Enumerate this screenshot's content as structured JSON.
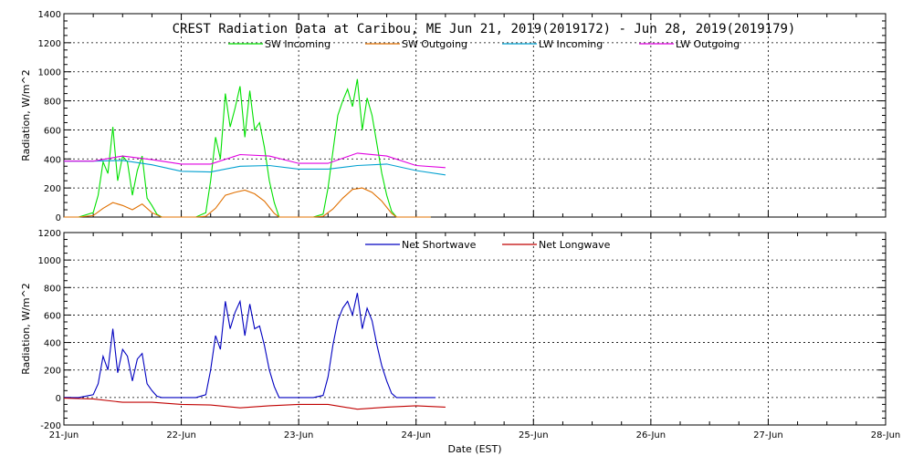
{
  "chart_data": [
    {
      "type": "line",
      "title": "CREST Radiation Data at Caribou, ME   Jun 21, 2019(2019172) - Jun 28, 2019(2019179)",
      "ylabel": "Radiation, W/m^2",
      "xlabel": "",
      "ylim": [
        0,
        1400
      ],
      "yticks": [
        0,
        200,
        400,
        600,
        800,
        1000,
        1200,
        1400
      ],
      "xlim": [
        "21-Jun",
        "28-Jun"
      ],
      "xticks": [
        "21-Jun",
        "22-Jun",
        "23-Jun",
        "24-Jun",
        "25-Jun",
        "26-Jun",
        "27-Jun",
        "28-Jun"
      ],
      "grid": true,
      "legend": "top",
      "series": [
        {
          "name": "SW Incoming",
          "color": "#00e000",
          "x": [
            "21-Jun 00:00",
            "21-Jun 03:00",
            "21-Jun 06:00",
            "21-Jun 07:00",
            "21-Jun 08:00",
            "21-Jun 09:00",
            "21-Jun 10:00",
            "21-Jun 11:00",
            "21-Jun 12:00",
            "21-Jun 13:00",
            "21-Jun 14:00",
            "21-Jun 15:00",
            "21-Jun 16:00",
            "21-Jun 17:00",
            "21-Jun 18:00",
            "21-Jun 19:00",
            "21-Jun 20:00",
            "21-Jun 22:00",
            "22-Jun 03:00",
            "22-Jun 05:00",
            "22-Jun 06:00",
            "22-Jun 07:00",
            "22-Jun 08:00",
            "22-Jun 09:00",
            "22-Jun 10:00",
            "22-Jun 11:00",
            "22-Jun 12:00",
            "22-Jun 13:00",
            "22-Jun 14:00",
            "22-Jun 15:00",
            "22-Jun 16:00",
            "22-Jun 17:00",
            "22-Jun 18:00",
            "22-Jun 19:00",
            "22-Jun 20:00",
            "22-Jun 22:00",
            "23-Jun 03:00",
            "23-Jun 05:00",
            "23-Jun 06:00",
            "23-Jun 07:00",
            "23-Jun 08:00",
            "23-Jun 09:00",
            "23-Jun 10:00",
            "23-Jun 11:00",
            "23-Jun 12:00",
            "23-Jun 13:00",
            "23-Jun 14:00",
            "23-Jun 15:00",
            "23-Jun 16:00",
            "23-Jun 17:00",
            "23-Jun 18:00",
            "23-Jun 19:00",
            "23-Jun 20:00",
            "23-Jun 22:00",
            "24-Jun 03:00"
          ],
          "values": [
            0,
            0,
            30,
            150,
            380,
            300,
            620,
            250,
            420,
            380,
            150,
            320,
            420,
            130,
            80,
            20,
            0,
            0,
            0,
            30,
            250,
            550,
            400,
            850,
            620,
            750,
            900,
            550,
            870,
            600,
            650,
            480,
            250,
            100,
            0,
            0,
            0,
            20,
            200,
            450,
            700,
            800,
            880,
            760,
            950,
            600,
            820,
            700,
            500,
            300,
            150,
            40,
            0,
            0,
            0
          ]
        },
        {
          "name": "SW Outgoing",
          "color": "#e07000",
          "x": [
            "21-Jun 00:00",
            "21-Jun 03:00",
            "21-Jun 06:00",
            "21-Jun 08:00",
            "21-Jun 10:00",
            "21-Jun 12:00",
            "21-Jun 14:00",
            "21-Jun 16:00",
            "21-Jun 18:00",
            "21-Jun 20:00",
            "22-Jun 03:00",
            "22-Jun 05:00",
            "22-Jun 07:00",
            "22-Jun 09:00",
            "22-Jun 11:00",
            "22-Jun 13:00",
            "22-Jun 15:00",
            "22-Jun 17:00",
            "22-Jun 19:00",
            "22-Jun 20:00",
            "23-Jun 03:00",
            "23-Jun 05:00",
            "23-Jun 07:00",
            "23-Jun 09:00",
            "23-Jun 11:00",
            "23-Jun 13:00",
            "23-Jun 15:00",
            "23-Jun 17:00",
            "23-Jun 19:00",
            "23-Jun 20:00",
            "24-Jun 03:00"
          ],
          "values": [
            0,
            0,
            10,
            60,
            100,
            80,
            50,
            90,
            30,
            0,
            0,
            5,
            60,
            150,
            170,
            185,
            160,
            110,
            25,
            0,
            0,
            5,
            55,
            130,
            190,
            200,
            170,
            110,
            25,
            0,
            0
          ]
        },
        {
          "name": "LW Incoming",
          "color": "#00a0d0",
          "x": [
            "21-Jun 00:00",
            "21-Jun 06:00",
            "21-Jun 12:00",
            "21-Jun 18:00",
            "22-Jun 00:00",
            "22-Jun 06:00",
            "22-Jun 12:00",
            "22-Jun 18:00",
            "23-Jun 00:00",
            "23-Jun 06:00",
            "23-Jun 12:00",
            "23-Jun 18:00",
            "24-Jun 00:00",
            "24-Jun 06:00"
          ],
          "values": [
            385,
            385,
            390,
            360,
            315,
            310,
            350,
            355,
            330,
            330,
            355,
            365,
            320,
            290
          ]
        },
        {
          "name": "LW Outgoing",
          "color": "#e000e0",
          "x": [
            "21-Jun 00:00",
            "21-Jun 06:00",
            "21-Jun 12:00",
            "21-Jun 18:00",
            "22-Jun 00:00",
            "22-Jun 06:00",
            "22-Jun 12:00",
            "22-Jun 18:00",
            "23-Jun 00:00",
            "23-Jun 06:00",
            "23-Jun 12:00",
            "23-Jun 18:00",
            "24-Jun 00:00",
            "24-Jun 06:00"
          ],
          "values": [
            385,
            385,
            420,
            395,
            365,
            365,
            430,
            420,
            370,
            370,
            440,
            420,
            355,
            340
          ]
        }
      ]
    },
    {
      "type": "line",
      "title": "",
      "ylabel": "Radiation, W/m^2",
      "xlabel": "Date (EST)",
      "ylim": [
        -200,
        1200
      ],
      "yticks": [
        -200,
        0,
        200,
        400,
        600,
        800,
        1000,
        1200
      ],
      "xlim": [
        "21-Jun",
        "28-Jun"
      ],
      "xticks": [
        "21-Jun",
        "22-Jun",
        "23-Jun",
        "24-Jun",
        "25-Jun",
        "26-Jun",
        "27-Jun",
        "28-Jun"
      ],
      "grid": true,
      "legend": "top",
      "series": [
        {
          "name": "Net Shortwave",
          "color": "#0000c0",
          "x": [
            "21-Jun 00:00",
            "21-Jun 03:00",
            "21-Jun 06:00",
            "21-Jun 07:00",
            "21-Jun 08:00",
            "21-Jun 09:00",
            "21-Jun 10:00",
            "21-Jun 11:00",
            "21-Jun 12:00",
            "21-Jun 13:00",
            "21-Jun 14:00",
            "21-Jun 15:00",
            "21-Jun 16:00",
            "21-Jun 17:00",
            "21-Jun 18:00",
            "21-Jun 19:00",
            "21-Jun 20:00",
            "21-Jun 22:00",
            "22-Jun 03:00",
            "22-Jun 05:00",
            "22-Jun 06:00",
            "22-Jun 07:00",
            "22-Jun 08:00",
            "22-Jun 09:00",
            "22-Jun 10:00",
            "22-Jun 11:00",
            "22-Jun 12:00",
            "22-Jun 13:00",
            "22-Jun 14:00",
            "22-Jun 15:00",
            "22-Jun 16:00",
            "22-Jun 17:00",
            "22-Jun 18:00",
            "22-Jun 19:00",
            "22-Jun 20:00",
            "22-Jun 22:00",
            "23-Jun 03:00",
            "23-Jun 05:00",
            "23-Jun 06:00",
            "23-Jun 07:00",
            "23-Jun 08:00",
            "23-Jun 09:00",
            "23-Jun 10:00",
            "23-Jun 11:00",
            "23-Jun 12:00",
            "23-Jun 13:00",
            "23-Jun 14:00",
            "23-Jun 15:00",
            "23-Jun 16:00",
            "23-Jun 17:00",
            "23-Jun 18:00",
            "23-Jun 19:00",
            "23-Jun 20:00",
            "23-Jun 22:00",
            "24-Jun 04:00"
          ],
          "values": [
            0,
            0,
            20,
            100,
            300,
            200,
            500,
            180,
            350,
            300,
            120,
            280,
            320,
            100,
            50,
            10,
            0,
            0,
            0,
            20,
            200,
            450,
            350,
            700,
            500,
            620,
            700,
            450,
            680,
            500,
            520,
            380,
            200,
            80,
            0,
            0,
            0,
            15,
            150,
            380,
            560,
            650,
            700,
            600,
            760,
            500,
            650,
            560,
            380,
            230,
            120,
            30,
            0,
            0,
            0
          ]
        },
        {
          "name": "Net Longwave",
          "color": "#c00000",
          "x": [
            "21-Jun 00:00",
            "21-Jun 06:00",
            "21-Jun 12:00",
            "21-Jun 18:00",
            "22-Jun 00:00",
            "22-Jun 06:00",
            "22-Jun 12:00",
            "22-Jun 18:00",
            "23-Jun 00:00",
            "23-Jun 06:00",
            "23-Jun 12:00",
            "23-Jun 18:00",
            "24-Jun 00:00",
            "24-Jun 06:00"
          ],
          "values": [
            -5,
            -10,
            -35,
            -35,
            -50,
            -55,
            -75,
            -60,
            -50,
            -50,
            -85,
            -70,
            -60,
            -70
          ]
        }
      ]
    }
  ]
}
